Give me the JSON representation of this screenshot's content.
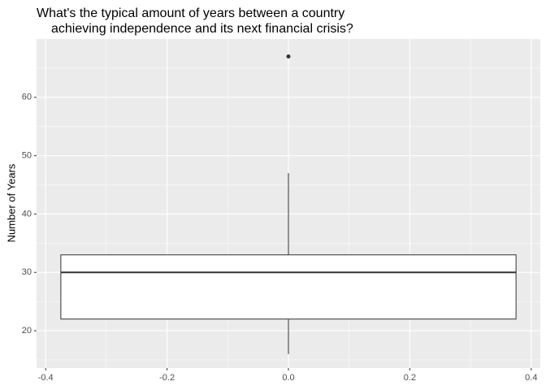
{
  "chart_data": {
    "type": "box",
    "title": [
      "What's the typical amount of years between a country",
      "achieving independence and its next financial crisis?"
    ],
    "y_label": "Number of Years",
    "boxes": [
      {
        "x": 0,
        "min": 16,
        "q1": 22,
        "median": 30,
        "q3": 33,
        "max": 47,
        "outliers": [
          67
        ]
      }
    ],
    "box_width": 0.75,
    "fill": "#ffffff",
    "stroke": "#333333",
    "xlim": [
      -0.415,
      0.415
    ],
    "xticks": [
      -0.4,
      -0.2,
      {
        "value": 0,
        "label": "0.0"
      },
      0.2,
      0.4
    ],
    "ylim": [
      13.6,
      70
    ],
    "yticks": [
      20,
      30,
      40,
      50,
      60
    ],
    "grid": true,
    "minor_grid": true
  }
}
